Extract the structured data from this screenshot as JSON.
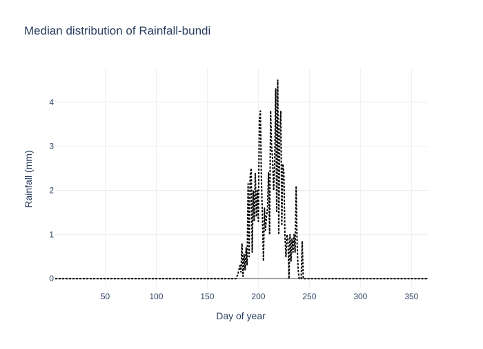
{
  "chart_data": {
    "type": "line",
    "title": "Median distribution of Rainfall-bundi",
    "xlabel": "Day of year",
    "ylabel": "Rainfall (mm)",
    "xlim": [
      1,
      366
    ],
    "ylim": [
      -0.2,
      4.75
    ],
    "x_ticks": [
      50,
      100,
      150,
      200,
      250,
      300,
      350
    ],
    "y_ticks": [
      0,
      1,
      2,
      3,
      4
    ],
    "grid": true,
    "legend": "none",
    "colors": {
      "line": "#000000",
      "grid": "#eeeeee",
      "zeroline": "#444444",
      "text": "#2a3f5f",
      "background": "#ffffff"
    },
    "series": [
      {
        "x": [
          1,
          170,
          175,
          178,
          180,
          182,
          183,
          184,
          185,
          186,
          187,
          188,
          189,
          190,
          191,
          192,
          193,
          194,
          195,
          196,
          197,
          198,
          199,
          200,
          201,
          202,
          203,
          204,
          205,
          206,
          207,
          208,
          209,
          210,
          211,
          212,
          213,
          214,
          215,
          216,
          217,
          218,
          219,
          220,
          221,
          222,
          223,
          224,
          225,
          226,
          227,
          228,
          229,
          230,
          231,
          232,
          233,
          234,
          235,
          236,
          237,
          238,
          239,
          240,
          241,
          242,
          243,
          244,
          245,
          246,
          247,
          248,
          249,
          250,
          251,
          252,
          253,
          260,
          300,
          366
        ],
        "values": [
          0,
          0,
          0,
          0,
          0.1,
          0.3,
          0.15,
          0.8,
          0.05,
          0.55,
          0.2,
          0.7,
          0.3,
          2.15,
          0.5,
          2.35,
          2.5,
          0.6,
          2.0,
          1.3,
          2.4,
          1.4,
          2.0,
          1.3,
          3.6,
          3.8,
          2.3,
          1.4,
          0.4,
          1.6,
          1.1,
          1.4,
          1.6,
          2.4,
          1.0,
          3.8,
          3.0,
          2.7,
          2.0,
          2.6,
          4.3,
          1.5,
          4.5,
          1.0,
          3.4,
          3.8,
          1.2,
          2.6,
          2.4,
          1.0,
          0.5,
          1.0,
          0.9,
          0.0,
          1.0,
          0.4,
          0.9,
          0.6,
          1.0,
          0.6,
          2.1,
          0.8,
          0.2,
          0.0,
          0.0,
          0.0,
          0.85,
          0.0,
          0.0,
          0.0,
          0.0,
          0.0,
          0.0,
          0.0,
          0.0,
          0.0,
          0.0,
          0.0,
          0.0,
          0.0
        ]
      }
    ]
  }
}
